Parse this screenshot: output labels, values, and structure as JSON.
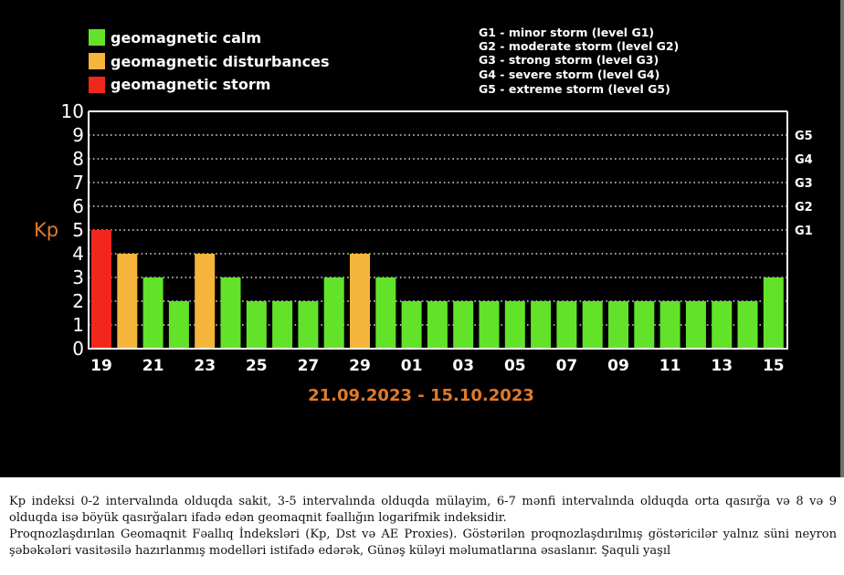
{
  "legend": {
    "items": [
      {
        "label": "geomagnetic calm",
        "color": "#62e32a"
      },
      {
        "label": "geomagnetic disturbances",
        "color": "#f5b53a"
      },
      {
        "label": "geomagnetic storm",
        "color": "#f2271b"
      }
    ],
    "storm_levels": [
      "G1 - minor storm (level G1)",
      "G2 - moderate storm (level G2)",
      "G3 - strong storm (level G3)",
      "G4 - severe storm (level G4)",
      "G5 - extreme storm (level G5)"
    ]
  },
  "chart_data": {
    "type": "bar",
    "ylabel": "Kp",
    "ylim": [
      0,
      10
    ],
    "yticks": [
      0,
      1,
      2,
      3,
      4,
      5,
      6,
      7,
      8,
      9,
      10
    ],
    "grid": true,
    "subtitle": "21.09.2023 - 15.10.2023",
    "x_tick_labels": [
      "19",
      "21",
      "23",
      "25",
      "27",
      "29",
      "01",
      "03",
      "05",
      "07",
      "09",
      "11",
      "13",
      "15"
    ],
    "right_axis": [
      {
        "label": "G1",
        "kp": 5
      },
      {
        "label": "G2",
        "kp": 6
      },
      {
        "label": "G3",
        "kp": 7
      },
      {
        "label": "G4",
        "kp": 8
      },
      {
        "label": "G5",
        "kp": 9
      }
    ],
    "values": [
      5,
      4,
      3,
      2,
      4,
      3,
      2,
      2,
      2,
      3,
      4,
      3,
      2,
      2,
      2,
      2,
      2,
      2,
      2,
      2,
      2,
      2,
      2,
      2,
      2,
      2,
      3
    ],
    "bar_colors": [
      "#f2271b",
      "#f5b53a",
      "#62e32a",
      "#62e32a",
      "#f5b53a",
      "#62e32a",
      "#62e32a",
      "#62e32a",
      "#62e32a",
      "#62e32a",
      "#f5b53a",
      "#62e32a",
      "#62e32a",
      "#62e32a",
      "#62e32a",
      "#62e32a",
      "#62e32a",
      "#62e32a",
      "#62e32a",
      "#62e32a",
      "#62e32a",
      "#62e32a",
      "#62e32a",
      "#62e32a",
      "#62e32a",
      "#62e32a",
      "#62e32a"
    ]
  },
  "caption": {
    "paragraph1": "Kp indeksi 0-2 intervalında olduqda sakit, 3-5 intervalında olduqda mülayim, 6-7 mənfi intervalında olduqda orta qasırğa və 8 və 9 olduqda isə böyük qasırğaları ifadə edən geomaqnit fəallığın logarifmik indeksidir.",
    "paragraph2": "Proqnozlaşdırılan Geomaqnit Fəallıq İndeksləri (Kp, Dst və AE Proxies). Göstərilən proqnozlaşdırılmış göstəricilər yalnız süni neyron şəbəkələri vasitəsilə hazırlanmış modelləri istifadə edərək, Günəş küləyi məlumatlarına əsaslanır. Şaquli yaşıl"
  }
}
